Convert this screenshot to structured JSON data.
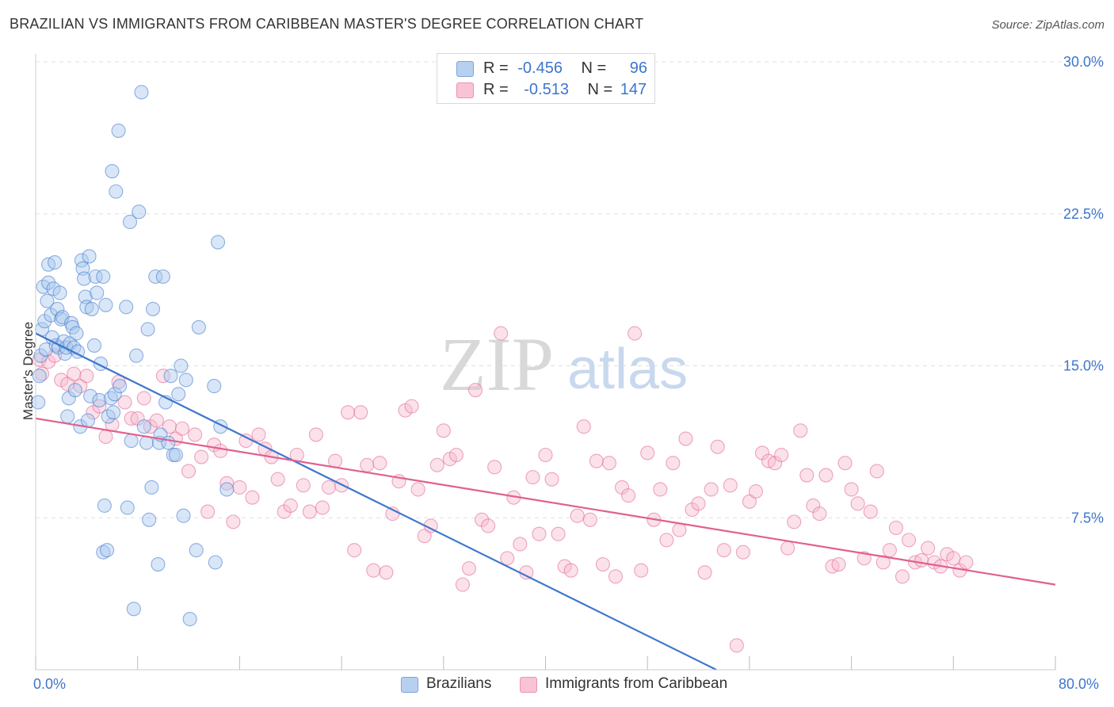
{
  "title": "BRAZILIAN VS IMMIGRANTS FROM CARIBBEAN MASTER'S DEGREE CORRELATION CHART",
  "source": "Source: ZipAtlas.com",
  "watermark": {
    "zip": "ZIP",
    "atlas": "atlas"
  },
  "legend": {
    "r_label": "R =",
    "n_label": "N =",
    "series": [
      {
        "r": "-0.456",
        "n": "96",
        "color": "#3d76cc"
      },
      {
        "r": "-0.513",
        "n": "147",
        "color": "#e06090"
      }
    ]
  },
  "bottom_legend": {
    "brazilians": "Brazilians",
    "caribbean": "Immigrants from Caribbean"
  },
  "axis": {
    "ylabel": "Master's Degree",
    "x_min_label": "0.0%",
    "x_max_label": "80.0%"
  },
  "chart_data": {
    "type": "scatter",
    "title": "BRAZILIAN VS IMMIGRANTS FROM CARIBBEAN MASTER'S DEGREE CORRELATION CHART",
    "xlabel": "",
    "ylabel": "Master's Degree",
    "xlim": [
      0,
      80
    ],
    "ylim": [
      0,
      30
    ],
    "y_ticks": [
      7.5,
      15.0,
      22.5,
      30.0
    ],
    "y_tick_labels": [
      "7.5%",
      "15.0%",
      "22.5%",
      "30.0%"
    ],
    "grid": true,
    "legend_position": "top-center",
    "series": [
      {
        "name": "Brazilians",
        "color": "#3d76cc",
        "fill": "#a9c7ee",
        "trend": {
          "x": [
            0,
            53.4
          ],
          "y": [
            16.6,
            0
          ]
        },
        "points": [
          [
            0.2,
            13.2
          ],
          [
            0.3,
            14.5
          ],
          [
            0.4,
            15.5
          ],
          [
            0.5,
            16.8
          ],
          [
            0.6,
            18.9
          ],
          [
            0.7,
            17.2
          ],
          [
            0.8,
            15.8
          ],
          [
            0.9,
            18.2
          ],
          [
            1.0,
            20.0
          ],
          [
            1.0,
            19.1
          ],
          [
            1.2,
            17.5
          ],
          [
            1.3,
            16.4
          ],
          [
            1.4,
            18.8
          ],
          [
            1.5,
            20.1
          ],
          [
            1.6,
            16.0
          ],
          [
            1.7,
            17.8
          ],
          [
            1.8,
            15.9
          ],
          [
            1.9,
            18.6
          ],
          [
            2.0,
            17.3
          ],
          [
            2.1,
            17.4
          ],
          [
            2.2,
            16.2
          ],
          [
            2.3,
            15.6
          ],
          [
            2.4,
            15.9
          ],
          [
            2.5,
            12.5
          ],
          [
            2.6,
            13.4
          ],
          [
            2.7,
            16.1
          ],
          [
            2.8,
            17.1
          ],
          [
            2.9,
            16.9
          ],
          [
            3.0,
            15.9
          ],
          [
            3.1,
            13.8
          ],
          [
            3.2,
            16.6
          ],
          [
            3.3,
            15.7
          ],
          [
            3.5,
            12.0
          ],
          [
            3.6,
            20.2
          ],
          [
            3.7,
            19.8
          ],
          [
            3.8,
            19.3
          ],
          [
            3.9,
            18.4
          ],
          [
            4.0,
            17.9
          ],
          [
            4.1,
            12.3
          ],
          [
            4.2,
            20.4
          ],
          [
            4.3,
            13.5
          ],
          [
            4.4,
            17.8
          ],
          [
            4.6,
            16.0
          ],
          [
            4.7,
            19.4
          ],
          [
            4.8,
            18.6
          ],
          [
            5.0,
            13.3
          ],
          [
            5.1,
            15.1
          ],
          [
            5.3,
            19.4
          ],
          [
            5.5,
            18.0
          ],
          [
            5.7,
            12.5
          ],
          [
            5.9,
            13.4
          ],
          [
            6.1,
            12.7
          ],
          [
            6.2,
            13.6
          ],
          [
            5.3,
            5.8
          ],
          [
            5.4,
            8.1
          ],
          [
            5.6,
            5.9
          ],
          [
            6.0,
            24.6
          ],
          [
            6.3,
            23.6
          ],
          [
            6.5,
            26.6
          ],
          [
            6.6,
            14.0
          ],
          [
            7.1,
            17.9
          ],
          [
            7.2,
            8.0
          ],
          [
            7.4,
            22.1
          ],
          [
            7.5,
            11.3
          ],
          [
            7.7,
            3.0
          ],
          [
            7.9,
            15.5
          ],
          [
            8.1,
            22.6
          ],
          [
            8.3,
            28.5
          ],
          [
            8.5,
            12.0
          ],
          [
            8.7,
            11.2
          ],
          [
            8.8,
            16.8
          ],
          [
            8.9,
            7.4
          ],
          [
            9.1,
            9.0
          ],
          [
            9.2,
            17.8
          ],
          [
            9.4,
            19.4
          ],
          [
            9.6,
            5.2
          ],
          [
            9.7,
            11.2
          ],
          [
            9.8,
            11.6
          ],
          [
            10.0,
            19.4
          ],
          [
            10.2,
            13.2
          ],
          [
            10.4,
            11.2
          ],
          [
            10.6,
            14.5
          ],
          [
            10.8,
            10.6
          ],
          [
            11.0,
            10.6
          ],
          [
            11.2,
            13.6
          ],
          [
            11.4,
            15.0
          ],
          [
            11.6,
            7.6
          ],
          [
            11.8,
            14.3
          ],
          [
            12.1,
            2.5
          ],
          [
            12.6,
            5.9
          ],
          [
            12.8,
            16.9
          ],
          [
            14.0,
            14.0
          ],
          [
            14.1,
            5.3
          ],
          [
            14.3,
            21.1
          ],
          [
            14.5,
            12.0
          ],
          [
            15.0,
            8.9
          ]
        ]
      },
      {
        "name": "Immigrants from Caribbean",
        "color": "#e06090",
        "fill": "#f6bcd0",
        "trend": {
          "x": [
            0,
            80
          ],
          "y": [
            12.4,
            4.2
          ]
        },
        "points": [
          [
            0.3,
            15.3
          ],
          [
            0.5,
            14.6
          ],
          [
            1.0,
            15.2
          ],
          [
            1.5,
            15.5
          ],
          [
            2.0,
            14.3
          ],
          [
            2.5,
            14.1
          ],
          [
            3.0,
            14.6
          ],
          [
            3.5,
            14.0
          ],
          [
            4.0,
            14.5
          ],
          [
            4.5,
            12.7
          ],
          [
            5.0,
            13.0
          ],
          [
            5.5,
            11.5
          ],
          [
            6.0,
            12.1
          ],
          [
            6.5,
            14.2
          ],
          [
            7.0,
            13.2
          ],
          [
            7.5,
            12.4
          ],
          [
            8.0,
            12.4
          ],
          [
            8.5,
            13.4
          ],
          [
            9.0,
            12.0
          ],
          [
            9.5,
            12.3
          ],
          [
            10.0,
            14.5
          ],
          [
            10.5,
            12.0
          ],
          [
            11.0,
            11.4
          ],
          [
            11.5,
            11.9
          ],
          [
            12.0,
            9.8
          ],
          [
            12.5,
            11.6
          ],
          [
            13.0,
            10.5
          ],
          [
            13.5,
            7.8
          ],
          [
            14.0,
            11.1
          ],
          [
            14.5,
            10.8
          ],
          [
            15.0,
            9.2
          ],
          [
            15.5,
            7.3
          ],
          [
            16.0,
            9.0
          ],
          [
            16.5,
            11.3
          ],
          [
            17.0,
            8.5
          ],
          [
            17.5,
            11.6
          ],
          [
            18.0,
            10.9
          ],
          [
            18.5,
            10.5
          ],
          [
            19.0,
            9.4
          ],
          [
            19.5,
            7.8
          ],
          [
            20.0,
            8.1
          ],
          [
            20.5,
            10.6
          ],
          [
            21.0,
            9.1
          ],
          [
            21.5,
            7.8
          ],
          [
            22.0,
            11.6
          ],
          [
            22.5,
            8.0
          ],
          [
            23.0,
            9.0
          ],
          [
            23.5,
            10.3
          ],
          [
            24.0,
            9.1
          ],
          [
            24.5,
            12.7
          ],
          [
            25.0,
            5.9
          ],
          [
            25.5,
            12.7
          ],
          [
            26.0,
            10.1
          ],
          [
            26.5,
            4.9
          ],
          [
            27.0,
            10.2
          ],
          [
            27.5,
            4.8
          ],
          [
            28.0,
            7.7
          ],
          [
            28.5,
            9.3
          ],
          [
            29.0,
            12.8
          ],
          [
            29.5,
            13.0
          ],
          [
            30.0,
            8.9
          ],
          [
            30.5,
            6.6
          ],
          [
            31.0,
            7.1
          ],
          [
            31.5,
            10.1
          ],
          [
            32.0,
            11.8
          ],
          [
            32.5,
            10.4
          ],
          [
            33.0,
            10.6
          ],
          [
            33.5,
            4.2
          ],
          [
            34.0,
            5.0
          ],
          [
            34.5,
            13.8
          ],
          [
            35.0,
            7.4
          ],
          [
            35.5,
            7.1
          ],
          [
            36.0,
            10.0
          ],
          [
            36.5,
            16.6
          ],
          [
            37.0,
            5.5
          ],
          [
            37.5,
            8.5
          ],
          [
            38.0,
            6.2
          ],
          [
            38.5,
            4.8
          ],
          [
            39.0,
            9.5
          ],
          [
            39.5,
            6.7
          ],
          [
            40.0,
            10.6
          ],
          [
            40.5,
            9.4
          ],
          [
            41.0,
            6.7
          ],
          [
            41.5,
            5.1
          ],
          [
            42.0,
            4.9
          ],
          [
            42.5,
            7.6
          ],
          [
            43.0,
            12.0
          ],
          [
            43.5,
            7.4
          ],
          [
            44.0,
            10.3
          ],
          [
            44.5,
            5.2
          ],
          [
            45.0,
            10.2
          ],
          [
            45.5,
            4.6
          ],
          [
            46.0,
            9.0
          ],
          [
            46.5,
            8.6
          ],
          [
            47.0,
            16.6
          ],
          [
            47.5,
            4.9
          ],
          [
            48.0,
            10.7
          ],
          [
            48.5,
            7.4
          ],
          [
            49.0,
            8.9
          ],
          [
            49.5,
            6.4
          ],
          [
            50.0,
            10.2
          ],
          [
            50.5,
            6.9
          ],
          [
            51.0,
            11.4
          ],
          [
            51.5,
            7.9
          ],
          [
            52.0,
            8.2
          ],
          [
            52.5,
            4.8
          ],
          [
            53.0,
            8.9
          ],
          [
            53.5,
            11.0
          ],
          [
            54.0,
            5.9
          ],
          [
            54.5,
            9.1
          ],
          [
            55.0,
            1.2
          ],
          [
            55.5,
            5.8
          ],
          [
            56.0,
            8.3
          ],
          [
            56.5,
            8.8
          ],
          [
            57.0,
            10.7
          ],
          [
            57.5,
            10.3
          ],
          [
            58.0,
            10.2
          ],
          [
            58.5,
            10.6
          ],
          [
            59.0,
            6.0
          ],
          [
            59.5,
            7.3
          ],
          [
            60.0,
            11.8
          ],
          [
            60.5,
            9.6
          ],
          [
            61.0,
            8.1
          ],
          [
            61.5,
            7.7
          ],
          [
            62.0,
            9.6
          ],
          [
            62.5,
            5.1
          ],
          [
            63.0,
            5.2
          ],
          [
            63.5,
            10.2
          ],
          [
            64.0,
            8.9
          ],
          [
            64.5,
            8.2
          ],
          [
            65.0,
            5.5
          ],
          [
            65.5,
            7.8
          ],
          [
            66.0,
            9.8
          ],
          [
            66.5,
            5.3
          ],
          [
            67.0,
            5.9
          ],
          [
            67.5,
            7.0
          ],
          [
            68.0,
            4.6
          ],
          [
            68.5,
            6.4
          ],
          [
            69.0,
            5.3
          ],
          [
            69.5,
            5.4
          ],
          [
            70.0,
            6.0
          ],
          [
            70.5,
            5.3
          ],
          [
            71.0,
            5.1
          ],
          [
            71.5,
            5.7
          ],
          [
            72.0,
            5.5
          ],
          [
            72.5,
            4.9
          ],
          [
            73.0,
            5.3
          ]
        ]
      }
    ]
  }
}
